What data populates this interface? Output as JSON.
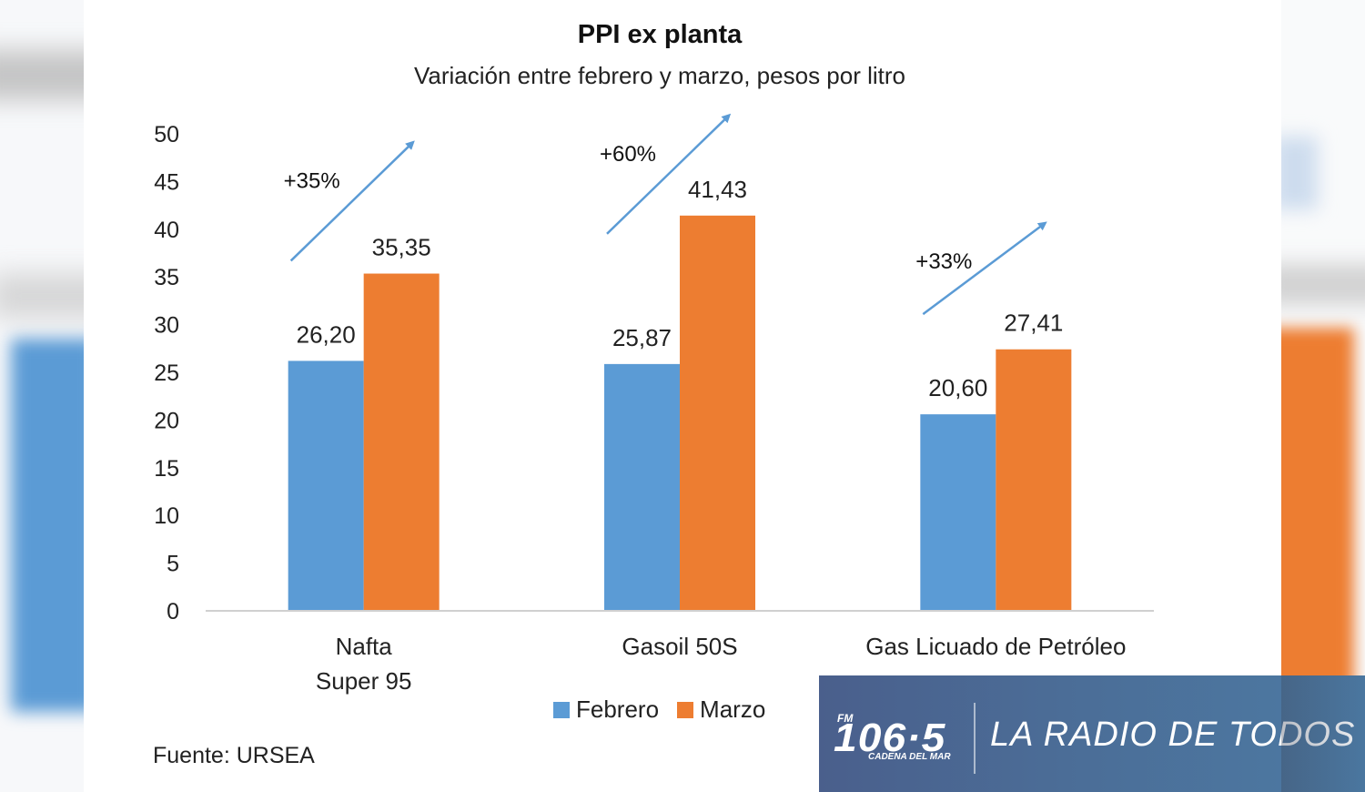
{
  "chart_data": {
    "type": "bar",
    "title": "PPI ex planta",
    "subtitle": "Variación entre febrero y marzo, pesos por litro",
    "categories": [
      "Nafta\nSuper 95",
      "Gasoil 50S",
      "Gas Licuado de Petróleo"
    ],
    "category_lines": [
      [
        "Nafta",
        "Super 95"
      ],
      [
        "Gasoil 50S"
      ],
      [
        "Gas Licuado de Petróleo"
      ]
    ],
    "series": [
      {
        "name": "Febrero",
        "color": "#5b9bd5",
        "values": [
          26.2,
          25.87,
          20.6
        ],
        "labels": [
          "26,20",
          "25,87",
          "20,60"
        ]
      },
      {
        "name": "Marzo",
        "color": "#ed7d31",
        "values": [
          35.35,
          41.43,
          27.41
        ],
        "labels": [
          "35,35",
          "41,43",
          "27,41"
        ]
      }
    ],
    "annotations": [
      {
        "category": "Nafta\nSuper 95",
        "text": "+35%",
        "kind": "up-arrow"
      },
      {
        "category": "Gasoil 50S",
        "text": "+60%",
        "kind": "up-arrow"
      },
      {
        "category": "Gas Licuado de Petróleo",
        "text": "+33%",
        "kind": "up-arrow"
      }
    ],
    "arrow_color": "#5b9bd5",
    "ylim": [
      0,
      50
    ],
    "yticks": [
      0,
      5,
      10,
      15,
      20,
      25,
      30,
      35,
      40,
      45,
      50
    ],
    "xlabel": "",
    "ylabel": "",
    "grid": false,
    "legend_position": "bottom",
    "source": "Fuente: URSEA"
  },
  "banner": {
    "fm": "FM",
    "frequency": "106·5",
    "station": "CADENA DEL MAR",
    "slogan": "LA RADIO DE TODOS"
  }
}
